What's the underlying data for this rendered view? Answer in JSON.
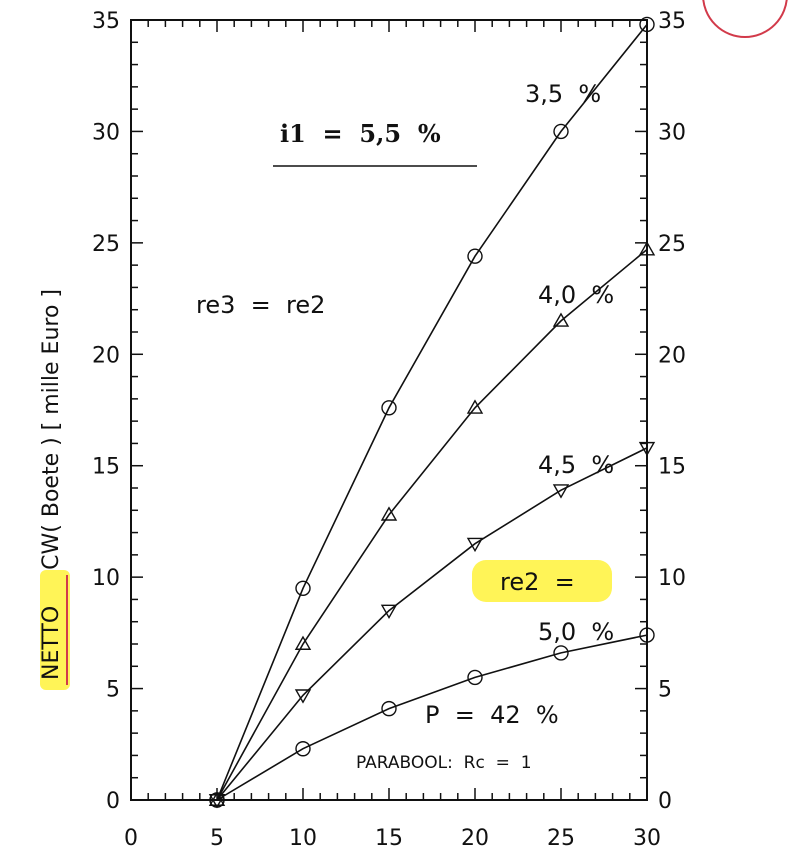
{
  "chart_data": {
    "type": "line",
    "ylabel_parts": [
      "NETTO",
      "CW( Boete ) [ mille Euro ]"
    ],
    "xlabel": "",
    "xlim": [
      0,
      30
    ],
    "ylim": [
      0,
      35
    ],
    "x_ticks": [
      "0",
      "5",
      "10",
      "15",
      "20",
      "25",
      "30"
    ],
    "y_ticks": [
      "0",
      "5",
      "10",
      "15",
      "20",
      "25",
      "30",
      "35"
    ],
    "x_values": [
      5,
      10,
      15,
      20,
      25,
      30
    ],
    "series": [
      {
        "name": "3,5  %",
        "marker": "circle",
        "values": [
          0,
          9.5,
          17.6,
          24.4,
          30.0,
          34.8
        ]
      },
      {
        "name": "4,0  %",
        "marker": "triangle-up",
        "values": [
          0,
          7.0,
          12.8,
          17.6,
          21.5,
          24.7
        ]
      },
      {
        "name": "4,5  %",
        "marker": "triangle-down",
        "values": [
          0,
          4.7,
          8.5,
          11.5,
          13.9,
          15.8
        ]
      },
      {
        "name": "5,0  %",
        "marker": "circle",
        "values": [
          0,
          2.3,
          4.1,
          5.5,
          6.6,
          7.4
        ]
      }
    ],
    "annotations": {
      "i1": "i1  =  5,5  %",
      "re3": "re3  =  re2",
      "re2": "re2  =",
      "p": "P  =  42  %",
      "parabool": "PARABOOL:  Rc  =  1"
    },
    "highlight_color": "#fff23a",
    "stamp_color": "#d23a4a",
    "grid": false
  }
}
